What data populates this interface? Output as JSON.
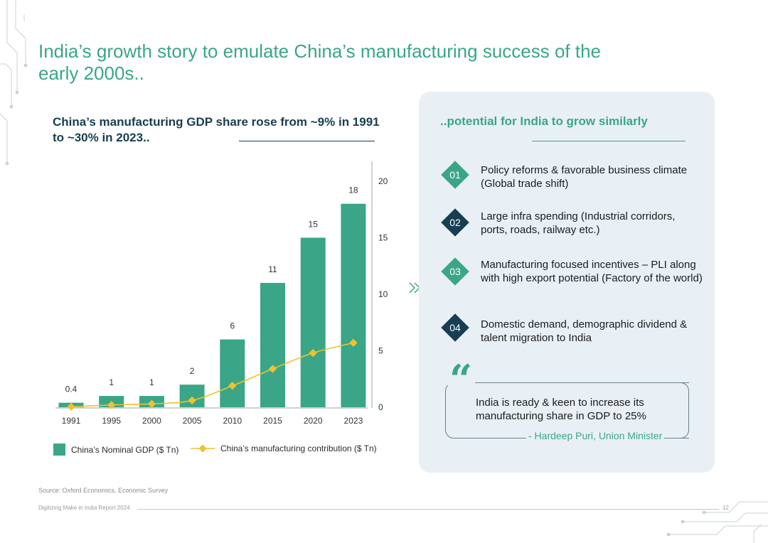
{
  "header": {
    "title": "India’s growth story to emulate China’s manufacturing success of the early 2000s.."
  },
  "chart_section": {
    "title": "China’s manufacturing GDP share rose from ~9% in 1991 to ~30% in 2023.."
  },
  "chart_data": {
    "type": "bar",
    "categories": [
      "1991",
      "1995",
      "2000",
      "2005",
      "2010",
      "2015",
      "2020",
      "2023"
    ],
    "series": [
      {
        "name": "China’s Nominal GDP ($ Tn)",
        "type": "bar",
        "values": [
          0.4,
          1,
          1,
          2,
          6,
          11,
          15,
          18
        ],
        "data_labels": [
          "0.4",
          "1",
          "1",
          "2",
          "6",
          "11",
          "15",
          "18"
        ],
        "color": "#3aa687"
      },
      {
        "name": "China’s manufacturing contribution ($ Tn)",
        "type": "line",
        "values": [
          0.04,
          0.2,
          0.3,
          0.6,
          1.9,
          3.4,
          4.8,
          5.7
        ],
        "color": "#f2c12e"
      }
    ],
    "y_axis": {
      "position": "right",
      "ticks": [
        "0",
        "5",
        "10",
        "15",
        "20"
      ],
      "ylim": [
        0,
        22
      ]
    },
    "legend_position": "bottom",
    "grid": false
  },
  "right_panel": {
    "title": "..potential for India to grow similarly",
    "items": [
      {
        "number": "01",
        "text": "Policy reforms & favorable business climate (Global trade shift)",
        "color": "#3aa687"
      },
      {
        "number": "02",
        "text": "Large infra spending (Industrial corridors, ports, roads, railway etc.)",
        "color": "#173e52"
      },
      {
        "number": "03",
        "text": "Manufacturing focused incentives – PLI along with high export potential (Factory of the world)",
        "color": "#3aa687"
      },
      {
        "number": "04",
        "text": "Domestic demand, demographic dividend & talent migration to India",
        "color": "#173e52"
      }
    ],
    "quote": {
      "text": "India is ready & keen to increase its manufacturing share in GDP to 25%",
      "author": "- Hardeep Puri, Union Minister"
    }
  },
  "footer": {
    "source": "Source: Oxford Economics, Economic Survey",
    "report": "Digitizing Make in India Report 2024",
    "page": "12"
  },
  "colors": {
    "accent": "#3aa687",
    "navy": "#173e52",
    "line": "#f2c12e",
    "panel": "#e9f0f5"
  }
}
